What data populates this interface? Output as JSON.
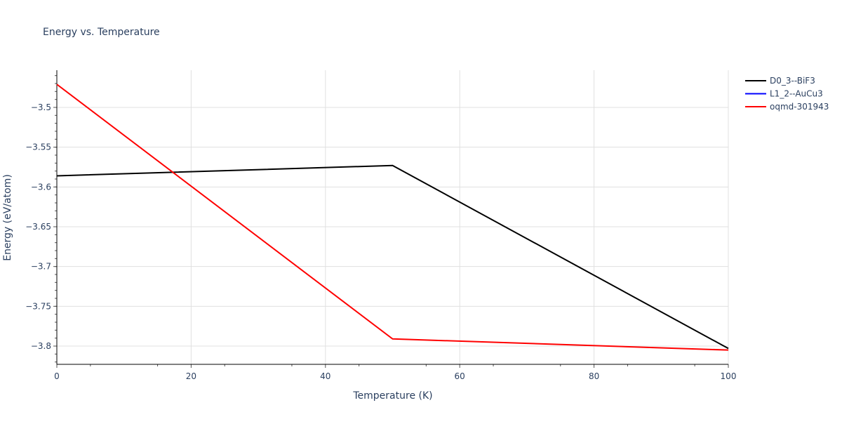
{
  "chart_data": {
    "type": "line",
    "title": "Energy vs. Temperature",
    "xlabel": "Temperature (K)",
    "ylabel": "Energy (eV/atom)",
    "xlim": [
      0,
      100
    ],
    "ylim": [
      -3.825,
      -3.415
    ],
    "xticks": [
      0,
      20,
      40,
      60,
      80,
      100
    ],
    "yticks": [
      -3.5,
      -3.55,
      -3.6,
      -3.65,
      -3.7,
      -3.75,
      -3.8
    ],
    "ytick_labels": [
      "−3.5",
      "−3.55",
      "−3.6",
      "−3.65",
      "−3.7",
      "−3.75",
      "−3.8"
    ],
    "grid": true,
    "legend_position": "right-top",
    "series": [
      {
        "name": "D0_3--BiF3",
        "color": "#000000",
        "x": [
          0,
          50,
          100
        ],
        "y": [
          -3.586,
          -3.573,
          -3.803
        ]
      },
      {
        "name": "L1_2--AuCu3",
        "color": "#0000ff",
        "x": [],
        "y": []
      },
      {
        "name": "oqmd-301943",
        "color": "#ff0000",
        "x": [
          0,
          50,
          100
        ],
        "y": [
          -3.471,
          -3.791,
          -3.805
        ]
      }
    ]
  }
}
